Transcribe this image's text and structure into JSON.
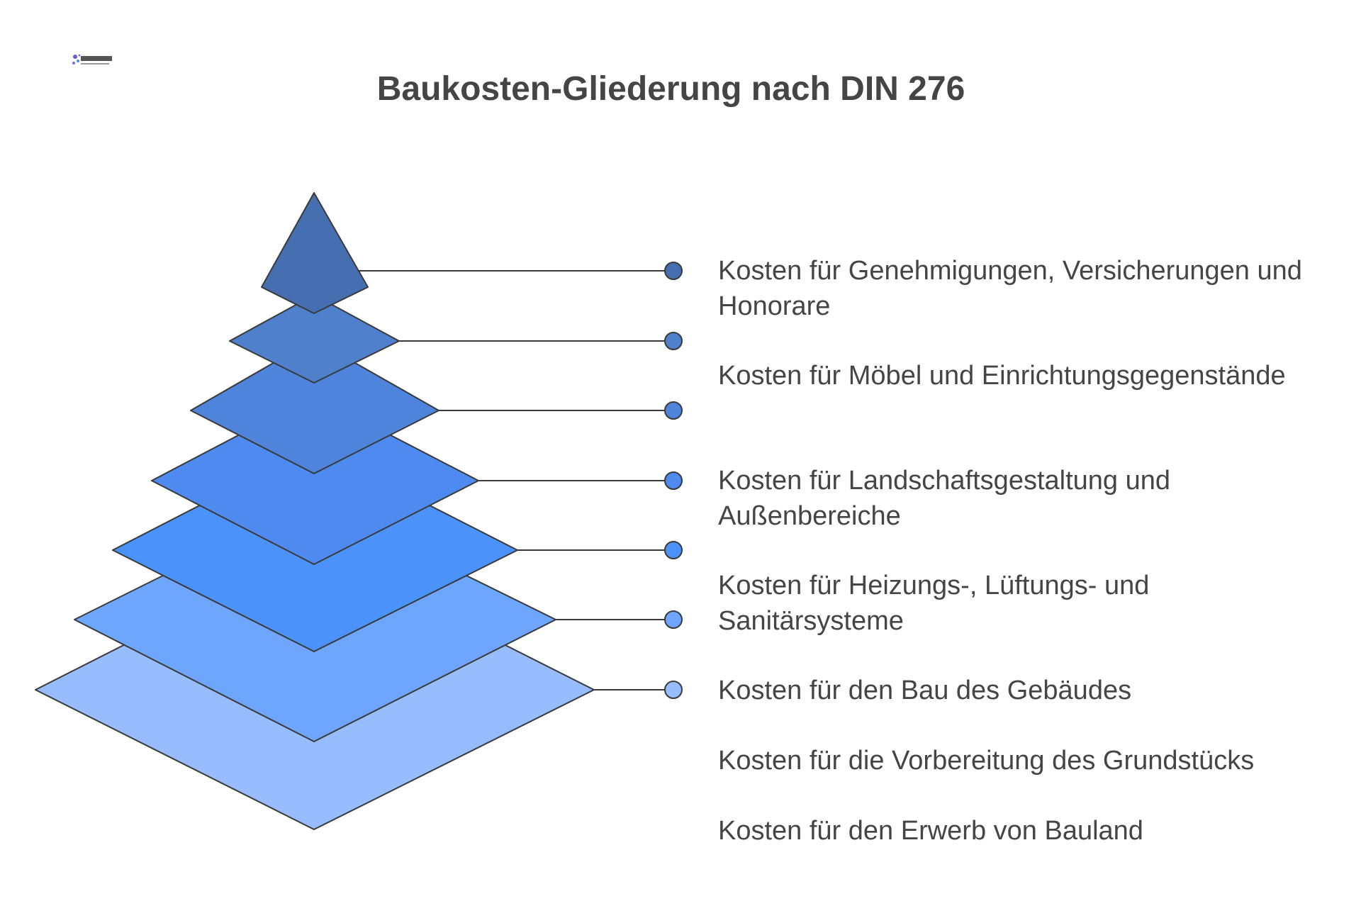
{
  "logo": {
    "text": "FM-Connect.com"
  },
  "title": "Baukosten-Gliederung nach DIN 276",
  "layers": [
    {
      "color": "#466fb2"
    },
    {
      "color": "#4f80cc"
    },
    {
      "color": "#4e84dc"
    },
    {
      "color": "#4e8af0"
    },
    {
      "color": "#4c92fb"
    },
    {
      "color": "#6ea5fd"
    },
    {
      "color": "#97bdfe"
    }
  ],
  "labels": [
    "Kosten für Genehmigungen, Versicherungen und Honorare",
    "Kosten für Möbel und Einrichtungsgegenstände",
    "Kosten für Landschaftsgestaltung und Außenbereiche",
    "Kosten für Heizungs-, Lüftungs- und Sanitärsysteme",
    "Kosten für den Bau des Gebäudes",
    "Kosten für die Vorbereitung des Grundstücks",
    "Kosten für den Erwerb von Bauland"
  ],
  "stroke_color": "#3a3a3a",
  "text_color": "#454545"
}
